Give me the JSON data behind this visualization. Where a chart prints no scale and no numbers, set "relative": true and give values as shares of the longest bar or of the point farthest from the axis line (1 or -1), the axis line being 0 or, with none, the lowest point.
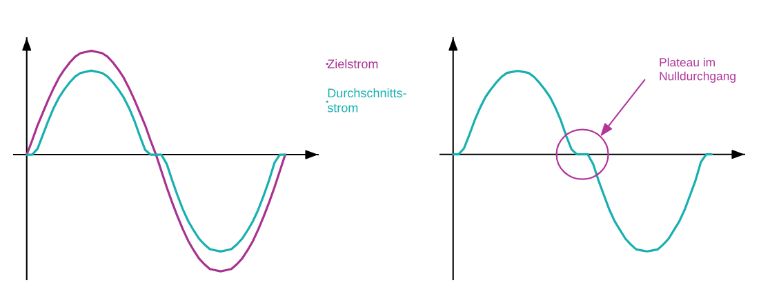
{
  "chart_data": [
    {
      "type": "line",
      "relative": true,
      "legend": "right",
      "categories": [
        null,
        null,
        null,
        null,
        null,
        null,
        null,
        null,
        null,
        null,
        null,
        null,
        null,
        null,
        null,
        null,
        null,
        null,
        null,
        null,
        null,
        null,
        null,
        null,
        null,
        null,
        null,
        null,
        null,
        null,
        null,
        null,
        null,
        null,
        null,
        null,
        null,
        null,
        null,
        null,
        null,
        null,
        null,
        null,
        null,
        null,
        null,
        null,
        null
      ],
      "series": [
        {
          "name": "Zielstrom",
          "color": "#a8328f",
          "values": [
            0,
            0.12,
            0.25,
            0.36,
            0.47,
            0.57,
            0.66,
            0.73,
            0.79,
            0.84,
            0.87,
            0.88,
            0.89,
            0.88,
            0.87,
            0.84,
            0.79,
            0.73,
            0.66,
            0.57,
            0.47,
            0.36,
            0.25,
            0.12,
            0,
            -0.14,
            -0.28,
            -0.41,
            -0.53,
            -0.64,
            -0.74,
            -0.82,
            -0.89,
            -0.94,
            -0.98,
            -0.99,
            -1,
            -0.99,
            -0.98,
            -0.94,
            -0.89,
            -0.82,
            -0.74,
            -0.64,
            -0.53,
            -0.41,
            -0.28,
            -0.14,
            0
          ]
        },
        {
          "name": "Durchschnitts-\nstrom",
          "color": "#17afb0",
          "values": [
            0,
            0,
            0.05,
            0.17,
            0.29,
            0.4,
            0.49,
            0.56,
            0.62,
            0.67,
            0.7,
            0.71,
            0.72,
            0.71,
            0.7,
            0.67,
            0.62,
            0.56,
            0.49,
            0.4,
            0.29,
            0.16,
            0.04,
            0,
            0,
            0,
            -0.08,
            -0.22,
            -0.35,
            -0.47,
            -0.57,
            -0.65,
            -0.72,
            -0.77,
            -0.81,
            -0.82,
            -0.83,
            -0.82,
            -0.81,
            -0.77,
            -0.72,
            -0.65,
            -0.57,
            -0.47,
            -0.35,
            -0.22,
            -0.07,
            0,
            0
          ]
        }
      ]
    },
    {
      "type": "line",
      "relative": true,
      "categories": [
        null,
        null,
        null,
        null,
        null,
        null,
        null,
        null,
        null,
        null,
        null,
        null,
        null,
        null,
        null,
        null,
        null,
        null,
        null,
        null,
        null,
        null,
        null,
        null,
        null,
        null,
        null,
        null,
        null,
        null,
        null,
        null,
        null,
        null,
        null,
        null,
        null,
        null,
        null,
        null,
        null,
        null,
        null,
        null,
        null,
        null,
        null,
        null,
        null
      ],
      "series": [
        {
          "color": "#17afb0",
          "values": [
            0,
            0,
            0.06,
            0.2,
            0.35,
            0.48,
            0.59,
            0.67,
            0.74,
            0.8,
            0.84,
            0.85,
            0.86,
            0.85,
            0.84,
            0.8,
            0.74,
            0.67,
            0.59,
            0.48,
            0.35,
            0.19,
            0.05,
            0,
            0,
            0,
            -0.1,
            -0.27,
            -0.42,
            -0.57,
            -0.69,
            -0.78,
            -0.87,
            -0.93,
            -0.98,
            -0.99,
            -1,
            -0.99,
            -0.98,
            -0.93,
            -0.87,
            -0.78,
            -0.69,
            -0.57,
            -0.42,
            -0.27,
            -0.08,
            0,
            0
          ]
        }
      ],
      "annotations": [
        "Plateau im\nNulldurchgang"
      ]
    }
  ]
}
